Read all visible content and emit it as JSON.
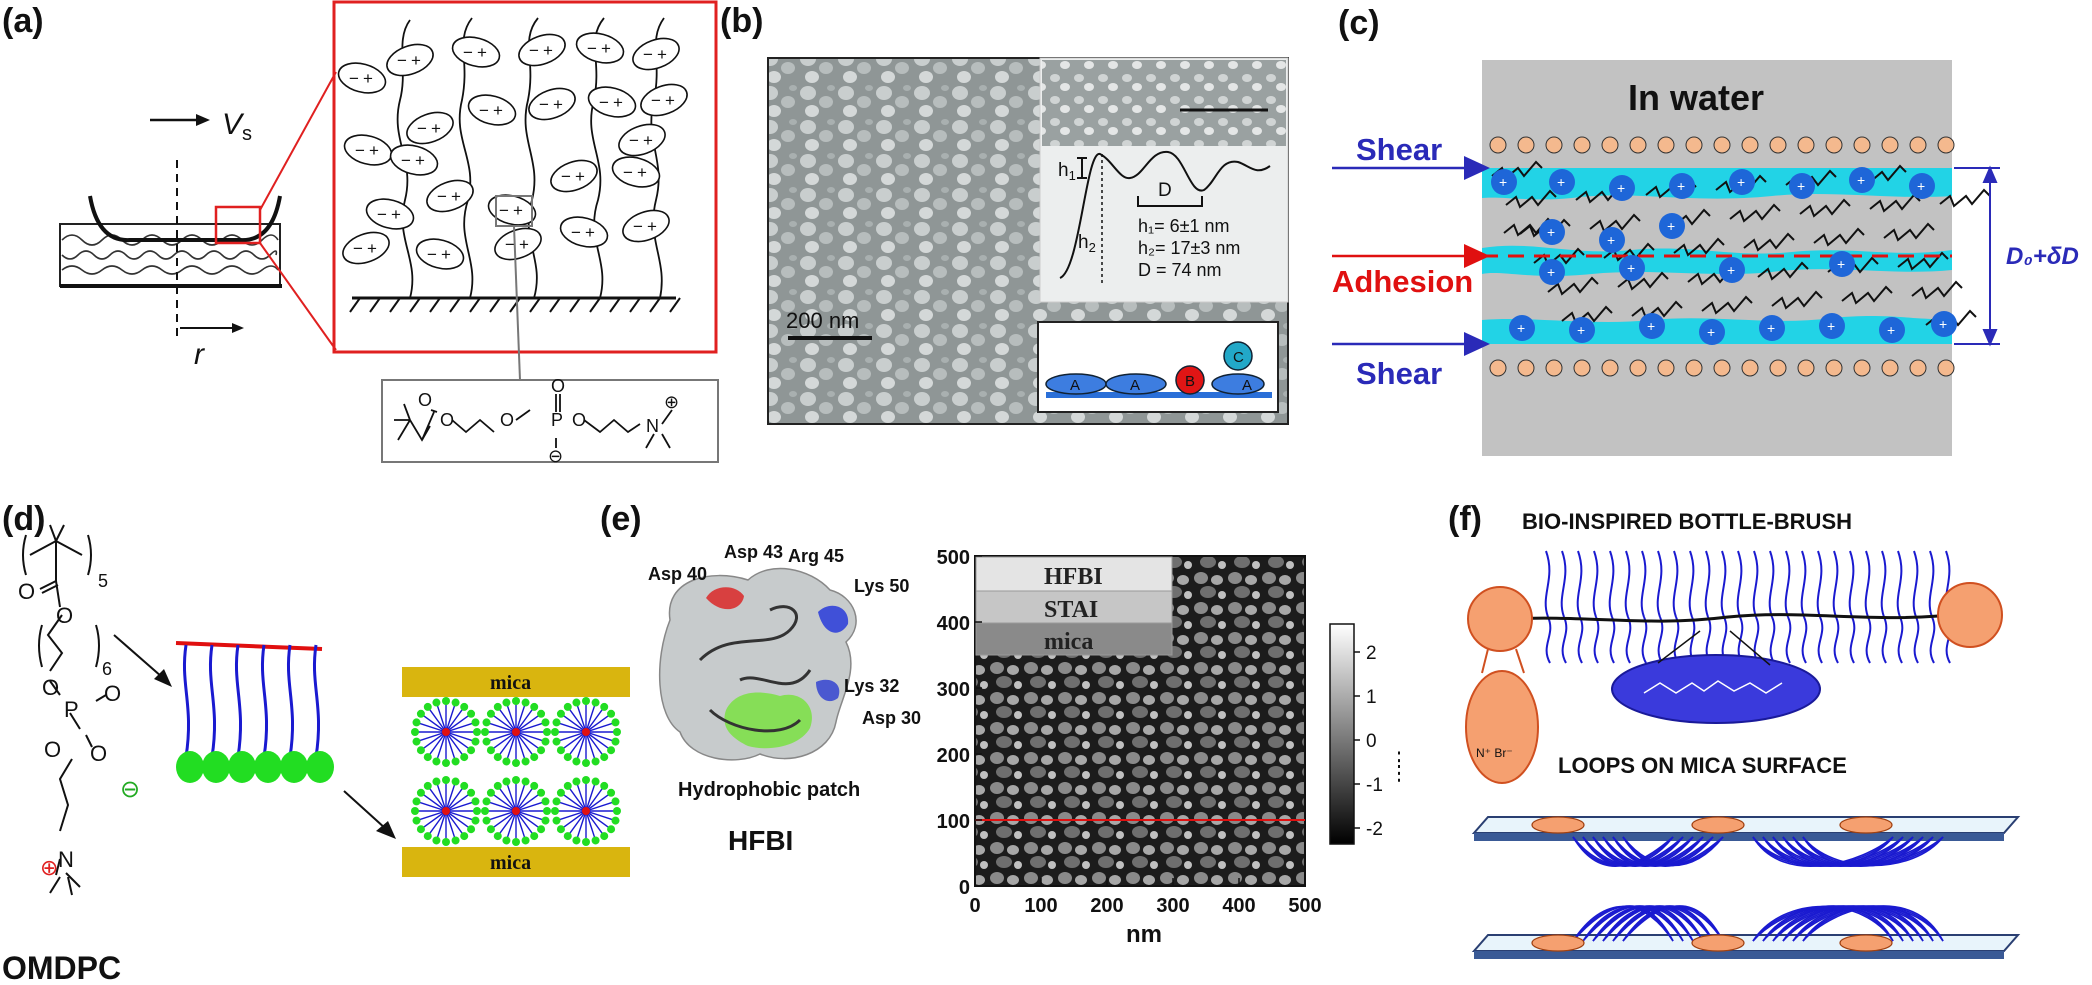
{
  "panels": {
    "a": {
      "label": "(a)",
      "velocity": "V",
      "velocity_sub": "s",
      "radius": "r",
      "brush_charges": {
        "neg": "−",
        "pos": "+"
      },
      "molecule": {
        "o1": "O",
        "o2": "O",
        "o3": "O",
        "o4": "O",
        "p": "P",
        "o5": "O",
        "minus": "⊖",
        "n": "N",
        "plus": "⊕"
      }
    },
    "b": {
      "label": "(b)",
      "scale_bar": "200 nm",
      "h1": "h",
      "h1_sub": "1",
      "h2": "h",
      "h2_sub": "2",
      "d": "D",
      "meas_h1": "h₁= 6±1 nm",
      "meas_h2": "h₂= 17±3 nm",
      "meas_d": "D = 74 nm",
      "blocks": {
        "a1": "A",
        "a2": "A",
        "b": "B",
        "a3": "A",
        "c": "C"
      }
    },
    "c": {
      "label": "(c)",
      "title": "In water",
      "shear_top": "Shear",
      "adhesion": "Adhesion",
      "shear_bottom": "Shear",
      "gap": "D₀+δD",
      "ion_plus": "+"
    },
    "d": {
      "label": "(d)",
      "subscript_5": "5",
      "subscript_6": "6",
      "atoms": {
        "o_c": "O",
        "o_a": "O",
        "o_b": "O",
        "p": "P",
        "o_p1": "O",
        "o_p2": "O",
        "o_p3": "O",
        "minus": "⊖",
        "plus": "⊕",
        "n": "N"
      },
      "name": "OMDPC",
      "mica_top": "mica",
      "mica_bottom": "mica"
    },
    "e": {
      "label": "(e)",
      "residues": {
        "asp43": "Asp 43",
        "arg45": "Arg 45",
        "asp40": "Asp 40",
        "lys50": "Lys 50",
        "lys32": "Lys 32",
        "asp30": "Asp 30"
      },
      "hydrophobic": "Hydrophobic patch",
      "protein": "HFBI",
      "layers": [
        "HFBI",
        "STAI",
        "mica"
      ],
      "y_ticks": [
        "500",
        "400",
        "300",
        "200",
        "100",
        "0"
      ],
      "x_ticks": [
        "0",
        "100",
        "200",
        "300",
        "400",
        "500"
      ],
      "x_label": "nm",
      "colorbar_ticks": [
        "2",
        "1",
        "0",
        "-1",
        "-2"
      ],
      "colorbar_label": "nm"
    },
    "f": {
      "label": "(f)",
      "title_top": "BIO-INSPIRED BOTTLE-BRUSH",
      "title_bottom": "LOOPS ON MICA SURFACE",
      "bromide": "N⁺ Br⁻"
    }
  },
  "colors": {
    "red_frame": "#e02020",
    "cyan_layer": "#22d3e6",
    "blue_ion": "#1e66d8",
    "arrow_blue": "#2a2ab8",
    "adhesion_red": "#e01010",
    "mica_gold": "#d9b50f",
    "head_green": "#22dd22",
    "chain_blue": "#1a1ad0",
    "orange_end": "#f5a070"
  }
}
